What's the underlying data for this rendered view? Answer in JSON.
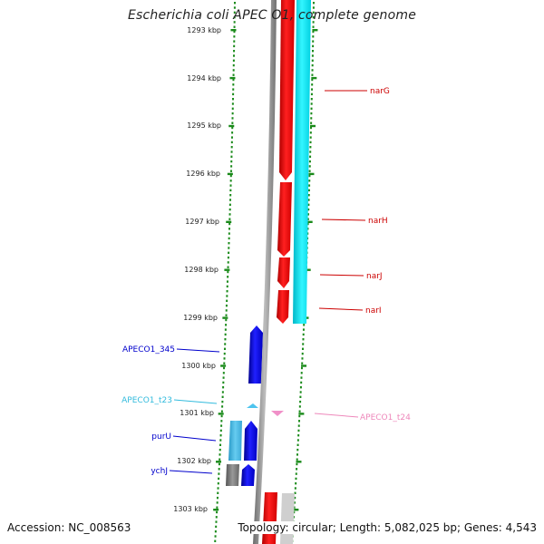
{
  "title": "Escherichia coli APEC O1, complete genome",
  "accession": "Accession: NC_008563",
  "topology": "Topology: circular; Length: 5,082,025 bp; Genes: 4,543",
  "scale_ticks": [
    "1293 kbp",
    "1294 kbp",
    "1295 kbp",
    "1296 kbp",
    "1297 kbp",
    "1298 kbp",
    "1299 kbp",
    "1300 kbp",
    "1301 kbp",
    "1302 kbp",
    "1303 kbp"
  ],
  "colors": {
    "cds_forward": "#0000e0",
    "cds_reverse": "#ff0000",
    "rrna": "#00e5ee",
    "trna": "#4dc4ee",
    "misc": "#f090c8",
    "ruler": "#1a8a1a"
  },
  "features": [
    {
      "label": "narG",
      "strand": "reverse",
      "kind": "cds",
      "color": "#cc0000"
    },
    {
      "label": "narH",
      "strand": "reverse",
      "kind": "cds",
      "color": "#cc0000"
    },
    {
      "label": "narJ",
      "strand": "reverse",
      "kind": "cds",
      "color": "#cc0000"
    },
    {
      "label": "narI",
      "strand": "reverse",
      "kind": "cds",
      "color": "#cc0000"
    },
    {
      "label": "APECO1_345",
      "strand": "forward",
      "kind": "cds",
      "color": "#0000cc"
    },
    {
      "label": "APECO1_t23",
      "strand": "forward",
      "kind": "trna",
      "color": "#33bbdd"
    },
    {
      "label": "APECO1_t24",
      "strand": "reverse",
      "kind": "misc",
      "color": "#ee88bb"
    },
    {
      "label": "purU",
      "strand": "forward",
      "kind": "cds",
      "color": "#0000cc"
    },
    {
      "label": "ychJ",
      "strand": "forward",
      "kind": "cds",
      "color": "#0000cc"
    }
  ]
}
